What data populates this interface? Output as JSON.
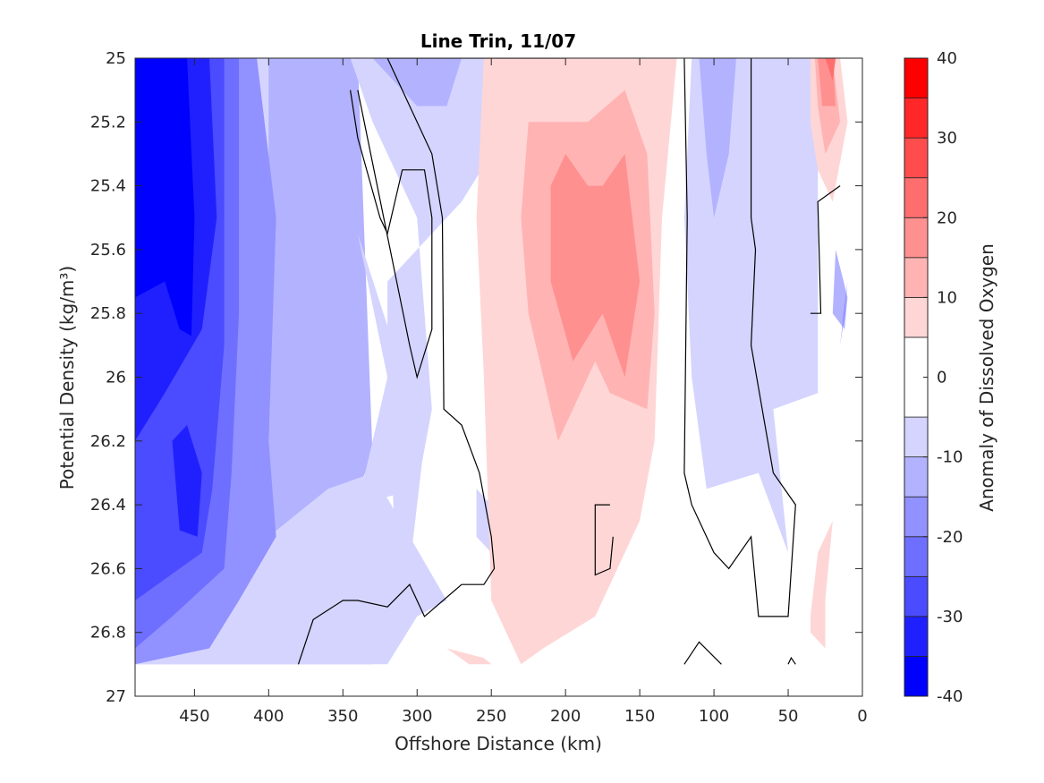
{
  "chart_data": {
    "type": "contour",
    "title": "Line Trin, 11/07",
    "xlabel": "Offshore Distance (km)",
    "ylabel": "Potential Density (kg/m³)",
    "colorbar_label": "Anomaly of Dissolved Oxygen",
    "xlim": [
      490,
      0
    ],
    "ylim": [
      25,
      27
    ],
    "y_reversed": true,
    "x_reversed": true,
    "x_ticks": [
      450,
      400,
      350,
      300,
      250,
      200,
      150,
      100,
      50,
      0
    ],
    "x_tick_labels": [
      "450",
      "400",
      "350",
      "300",
      "250",
      "200",
      "150",
      "100",
      "50",
      "0"
    ],
    "y_ticks": [
      25,
      25.2,
      25.4,
      25.6,
      25.8,
      26,
      26.2,
      26.4,
      26.6,
      26.8,
      27
    ],
    "y_tick_labels": [
      "25",
      "25.2",
      "25.4",
      "25.6",
      "25.8",
      "26",
      "26.2",
      "26.4",
      "26.6",
      "26.8",
      "27"
    ],
    "colorbar_ticks": [
      40,
      30,
      20,
      10,
      0,
      -10,
      -20,
      -30,
      -40
    ],
    "colorbar_tick_labels": [
      "40",
      "30",
      "20",
      "10",
      "0",
      "-10",
      "-20",
      "-30",
      "-40"
    ],
    "colorbar_levels": [
      -40,
      -35,
      -30,
      -25,
      -20,
      -15,
      -10,
      -5,
      5,
      10,
      15,
      20,
      25,
      30,
      35,
      40
    ],
    "colormap": [
      "#0000ff",
      "#2020ff",
      "#4b4bff",
      "#6f6fff",
      "#9191ff",
      "#b2b2ff",
      "#d4d4ff",
      "#ffffff",
      "#ffd6d6",
      "#ffb3b3",
      "#ff9090",
      "#ff6e6e",
      "#ff4c4c",
      "#ff2727",
      "#ff0000"
    ],
    "regions": [
      {
        "value": -12.5,
        "pts": [
          [
            490,
            25
          ],
          [
            340,
            25
          ],
          [
            330,
            26.25
          ],
          [
            350,
            26.45
          ],
          [
            355,
            26.65
          ],
          [
            330,
            26.8
          ],
          [
            330,
            26.9
          ],
          [
            490,
            26.9
          ]
        ]
      },
      {
        "value": -7.5,
        "pts": [
          [
            400,
            25
          ],
          [
            480,
            25
          ],
          [
            490,
            26.9
          ],
          [
            320,
            26.9
          ],
          [
            300,
            26.75
          ],
          [
            280,
            26.7
          ],
          [
            330,
            26.3
          ],
          [
            360,
            26.35
          ],
          [
            400,
            26.5
          ]
        ]
      },
      {
        "value": -17.5,
        "pts": [
          [
            490,
            25
          ],
          [
            408,
            25
          ],
          [
            395,
            25.5
          ],
          [
            400,
            26.2
          ],
          [
            395,
            26.5
          ],
          [
            420,
            26.7
          ],
          [
            440,
            26.85
          ],
          [
            490,
            26.9
          ]
        ]
      },
      {
        "value": -22.5,
        "pts": [
          [
            490,
            25
          ],
          [
            420,
            25
          ],
          [
            420,
            25.8
          ],
          [
            425,
            26.3
          ],
          [
            430,
            26.6
          ],
          [
            465,
            26.75
          ],
          [
            490,
            26.85
          ]
        ]
      },
      {
        "value": -27.5,
        "pts": [
          [
            490,
            25
          ],
          [
            430,
            25
          ],
          [
            430,
            25.9
          ],
          [
            438,
            26.35
          ],
          [
            445,
            26.55
          ],
          [
            490,
            26.7
          ]
        ]
      },
      {
        "value": -32.5,
        "pts": [
          [
            490,
            25
          ],
          [
            440,
            25
          ],
          [
            435,
            25.5
          ],
          [
            445,
            25.85
          ],
          [
            470,
            26.05
          ],
          [
            490,
            26.2
          ]
        ]
      },
      {
        "value": -37.5,
        "pts": [
          [
            490,
            25
          ],
          [
            455,
            25
          ],
          [
            450,
            25.5
          ],
          [
            452,
            25.87
          ],
          [
            460,
            25.85
          ],
          [
            470,
            25.7
          ],
          [
            490,
            25.75
          ]
        ]
      },
      {
        "value": -32.5,
        "pts": [
          [
            465,
            26.2
          ],
          [
            455,
            26.15
          ],
          [
            445,
            26.3
          ],
          [
            448,
            26.5
          ],
          [
            460,
            26.48
          ]
        ]
      },
      {
        "value": -7.5,
        "pts": [
          [
            345,
            25
          ],
          [
            240,
            25
          ],
          [
            250,
            25.3
          ],
          [
            270,
            25.45
          ],
          [
            320,
            25.7
          ],
          [
            320,
            26.0
          ],
          [
            340,
            26.4
          ],
          [
            300,
            26.35
          ],
          [
            290,
            26.1
          ],
          [
            300,
            25.5
          ],
          [
            330,
            25.2
          ]
        ]
      },
      {
        "value": -7.5,
        "pts": [
          [
            340,
            25.55
          ],
          [
            320,
            26.0
          ],
          [
            315,
            26.5
          ],
          [
            305,
            26.6
          ],
          [
            295,
            26.2
          ]
        ]
      },
      {
        "value": -7.5,
        "pts": [
          [
            270,
            25
          ],
          [
            330,
            25
          ],
          [
            325,
            25.1
          ],
          [
            310,
            25.25
          ],
          [
            290,
            25.25
          ],
          [
            275,
            25.1
          ]
        ]
      },
      {
        "value": -12.5,
        "pts": [
          [
            330,
            25
          ],
          [
            270,
            25
          ],
          [
            280,
            25.15
          ],
          [
            300,
            25.15
          ],
          [
            320,
            25.05
          ]
        ]
      },
      {
        "value": -7.5,
        "pts": [
          [
            260,
            26.35
          ],
          [
            250,
            26.4
          ],
          [
            250,
            26.55
          ],
          [
            260,
            26.5
          ]
        ]
      },
      {
        "value": 7.5,
        "pts": [
          [
            255,
            25
          ],
          [
            125,
            25
          ],
          [
            135,
            25.5
          ],
          [
            140,
            26.2
          ],
          [
            150,
            26.45
          ],
          [
            165,
            26.6
          ],
          [
            180,
            26.75
          ],
          [
            215,
            26.85
          ],
          [
            230,
            26.9
          ],
          [
            250,
            26.7
          ],
          [
            255,
            26.0
          ],
          [
            260,
            25.5
          ]
        ]
      },
      {
        "value": 12.5,
        "pts": [
          [
            225,
            25.2
          ],
          [
            185,
            25.2
          ],
          [
            160,
            25.1
          ],
          [
            145,
            25.3
          ],
          [
            140,
            25.8
          ],
          [
            145,
            26.1
          ],
          [
            170,
            26.05
          ],
          [
            180,
            25.95
          ],
          [
            205,
            26.2
          ],
          [
            225,
            25.8
          ],
          [
            230,
            25.5
          ]
        ]
      },
      {
        "value": 17.5,
        "pts": [
          [
            200,
            25.3
          ],
          [
            185,
            25.4
          ],
          [
            175,
            25.4
          ],
          [
            160,
            25.3
          ],
          [
            150,
            25.7
          ],
          [
            160,
            26.0
          ],
          [
            175,
            25.8
          ],
          [
            195,
            25.95
          ],
          [
            210,
            25.7
          ],
          [
            210,
            25.4
          ]
        ]
      },
      {
        "value": 7.5,
        "pts": [
          [
            280,
            26.85
          ],
          [
            265,
            26.9
          ],
          [
            250,
            26.9
          ],
          [
            255,
            26.88
          ]
        ]
      },
      {
        "value": -7.5,
        "pts": [
          [
            115,
            25
          ],
          [
            30,
            25
          ],
          [
            30,
            26.05
          ],
          [
            60,
            26.1
          ],
          [
            50,
            26.55
          ],
          [
            70,
            26.3
          ],
          [
            105,
            26.35
          ],
          [
            115,
            26.0
          ],
          [
            120,
            25.5
          ]
        ]
      },
      {
        "value": -12.5,
        "pts": [
          [
            110,
            25
          ],
          [
            85,
            25
          ],
          [
            90,
            25.3
          ],
          [
            100,
            25.5
          ],
          [
            105,
            25.3
          ]
        ]
      },
      {
        "value": 7.5,
        "pts": [
          [
            35,
            25
          ],
          [
            15,
            25
          ],
          [
            10,
            25.2
          ],
          [
            20,
            25.45
          ],
          [
            30,
            25.35
          ],
          [
            35,
            25.2
          ]
        ]
      },
      {
        "value": 12.5,
        "pts": [
          [
            32,
            25
          ],
          [
            20,
            25
          ],
          [
            15,
            25.2
          ],
          [
            25,
            25.3
          ],
          [
            30,
            25.15
          ]
        ]
      },
      {
        "value": 17.5,
        "pts": [
          [
            30,
            25
          ],
          [
            20,
            25
          ],
          [
            18,
            25.15
          ],
          [
            27,
            25.15
          ]
        ]
      },
      {
        "value": 22.5,
        "pts": [
          [
            25,
            25
          ],
          [
            18,
            25
          ],
          [
            20,
            25.07
          ]
        ]
      },
      {
        "value": 7.5,
        "pts": [
          [
            20,
            26.45
          ],
          [
            30,
            26.55
          ],
          [
            35,
            26.75
          ],
          [
            35,
            26.8
          ],
          [
            25,
            26.85
          ],
          [
            25,
            26.7
          ]
        ]
      },
      {
        "value": -12.5,
        "pts": [
          [
            10,
            25.75
          ],
          [
            18,
            25.6
          ],
          [
            20,
            25.8
          ],
          [
            12,
            25.85
          ]
        ]
      },
      {
        "value": -22.5,
        "pts": [
          [
            10,
            25.7
          ],
          [
            12,
            25.8
          ],
          [
            15,
            25.9
          ]
        ]
      }
    ],
    "zero_contours": [
      [
        [
          380,
          26.9
        ],
        [
          370,
          26.76
        ],
        [
          350,
          26.7
        ],
        [
          340,
          26.7
        ],
        [
          320,
          26.72
        ],
        [
          305,
          26.65
        ],
        [
          295,
          26.75
        ],
        [
          270,
          26.65
        ],
        [
          255,
          26.65
        ],
        [
          248,
          26.6
        ],
        [
          250,
          26.5
        ],
        [
          258,
          26.3
        ],
        [
          270,
          26.15
        ],
        [
          282,
          26.1
        ],
        [
          283,
          25.5
        ],
        [
          290,
          25.3
        ],
        [
          320,
          25
        ],
        [
          230,
          25
        ],
        [
          200,
          25
        ]
      ],
      [
        [
          345,
          25.1
        ],
        [
          340,
          25.25
        ],
        [
          325,
          25.5
        ],
        [
          320,
          25.55
        ],
        [
          310,
          25.35
        ],
        [
          295,
          25.35
        ],
        [
          290,
          25.5
        ],
        [
          290,
          25.85
        ],
        [
          300,
          26.0
        ],
        [
          305,
          25.9
        ],
        [
          340,
          25.1
        ]
      ],
      [
        [
          170,
          26.4
        ],
        [
          180,
          26.4
        ],
        [
          180,
          26.62
        ],
        [
          170,
          26.6
        ],
        [
          168,
          26.5
        ]
      ],
      [
        [
          120,
          25
        ],
        [
          118,
          25.5
        ],
        [
          120,
          26.3
        ],
        [
          115,
          26.4
        ],
        [
          100,
          26.55
        ],
        [
          90,
          26.6
        ],
        [
          75,
          26.5
        ],
        [
          70,
          26.75
        ],
        [
          50,
          26.75
        ],
        [
          45,
          26.4
        ],
        [
          60,
          26.3
        ],
        [
          75,
          25.9
        ],
        [
          72,
          25.6
        ],
        [
          75,
          25.5
        ],
        [
          75,
          25
        ]
      ],
      [
        [
          35,
          25.8
        ],
        [
          28,
          25.8
        ],
        [
          30,
          25.45
        ],
        [
          15,
          25.4
        ]
      ],
      [
        [
          120,
          26.9
        ],
        [
          110,
          26.83
        ],
        [
          95,
          26.9
        ]
      ],
      [
        [
          50,
          26.9
        ],
        [
          48,
          26.88
        ],
        [
          45,
          26.9
        ]
      ]
    ]
  }
}
